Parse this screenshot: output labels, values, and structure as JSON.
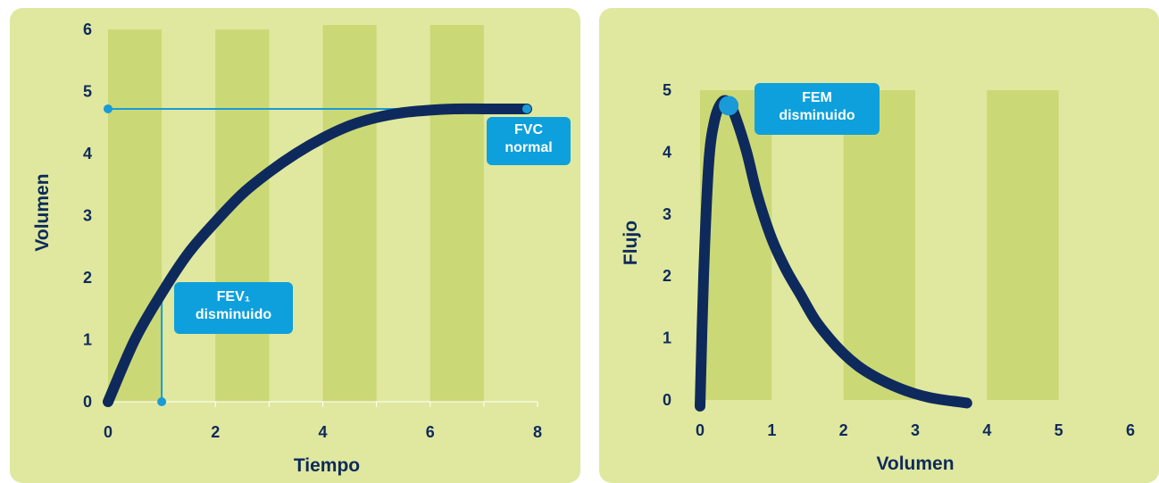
{
  "colors": {
    "panel_bg": "#dfe89e",
    "band": "#cbd876",
    "curve": "#0e2a5c",
    "marker": "#1a9ad6",
    "callout_bg": "#0ea0dc",
    "text": "#0e2a5c"
  },
  "chart_data": [
    {
      "type": "line",
      "title": "",
      "xlabel": "Tiempo",
      "ylabel": "Volumen",
      "xlim": [
        0,
        8
      ],
      "ylim": [
        0,
        6
      ],
      "x_ticks": [
        "0",
        "2",
        "4",
        "6",
        "8"
      ],
      "y_ticks": [
        "0",
        "1",
        "2",
        "3",
        "4",
        "5",
        "6"
      ],
      "grid": false,
      "series": [
        {
          "x": [
            0,
            0.5,
            1,
            1.5,
            2,
            2.5,
            3,
            3.5,
            4,
            4.5,
            5,
            5.5,
            6,
            6.5,
            7,
            7.5,
            7.8
          ],
          "y": [
            0,
            1.0,
            1.75,
            2.4,
            2.9,
            3.35,
            3.7,
            4.0,
            4.25,
            4.45,
            4.58,
            4.66,
            4.7,
            4.72,
            4.72,
            4.72,
            4.72
          ]
        }
      ],
      "annotations": [
        {
          "label_lines": [
            "FVC",
            "normal"
          ],
          "x": 7.8,
          "y": 4.72
        },
        {
          "label_lines": [
            "FEV₁",
            "disminuido"
          ],
          "x": 1,
          "y": 1.75
        }
      ]
    },
    {
      "type": "line",
      "title": "",
      "xlabel": "Volumen",
      "ylabel": "Flujo",
      "xlim": [
        0,
        6
      ],
      "ylim": [
        0,
        5
      ],
      "x_ticks": [
        "0",
        "1",
        "2",
        "3",
        "4",
        "5",
        "6"
      ],
      "y_ticks": [
        "0",
        "1",
        "2",
        "3",
        "4",
        "5"
      ],
      "grid": false,
      "series": [
        {
          "x": [
            0,
            0.05,
            0.12,
            0.2,
            0.3,
            0.4,
            0.5,
            0.65,
            0.8,
            1.0,
            1.2,
            1.4,
            1.6,
            1.8,
            2.0,
            2.2,
            2.4,
            2.6,
            2.8,
            3.0,
            3.2,
            3.4,
            3.6,
            3.72
          ],
          "y": [
            -0.1,
            2.0,
            3.8,
            4.5,
            4.8,
            4.8,
            4.55,
            4.0,
            3.3,
            2.6,
            2.1,
            1.7,
            1.3,
            1.0,
            0.75,
            0.55,
            0.4,
            0.28,
            0.18,
            0.1,
            0.04,
            0.0,
            -0.03,
            -0.05
          ]
        }
      ],
      "annotations": [
        {
          "label_lines": [
            "FEM",
            "disminuido"
          ],
          "x": 0.4,
          "y": 4.75
        }
      ]
    }
  ]
}
